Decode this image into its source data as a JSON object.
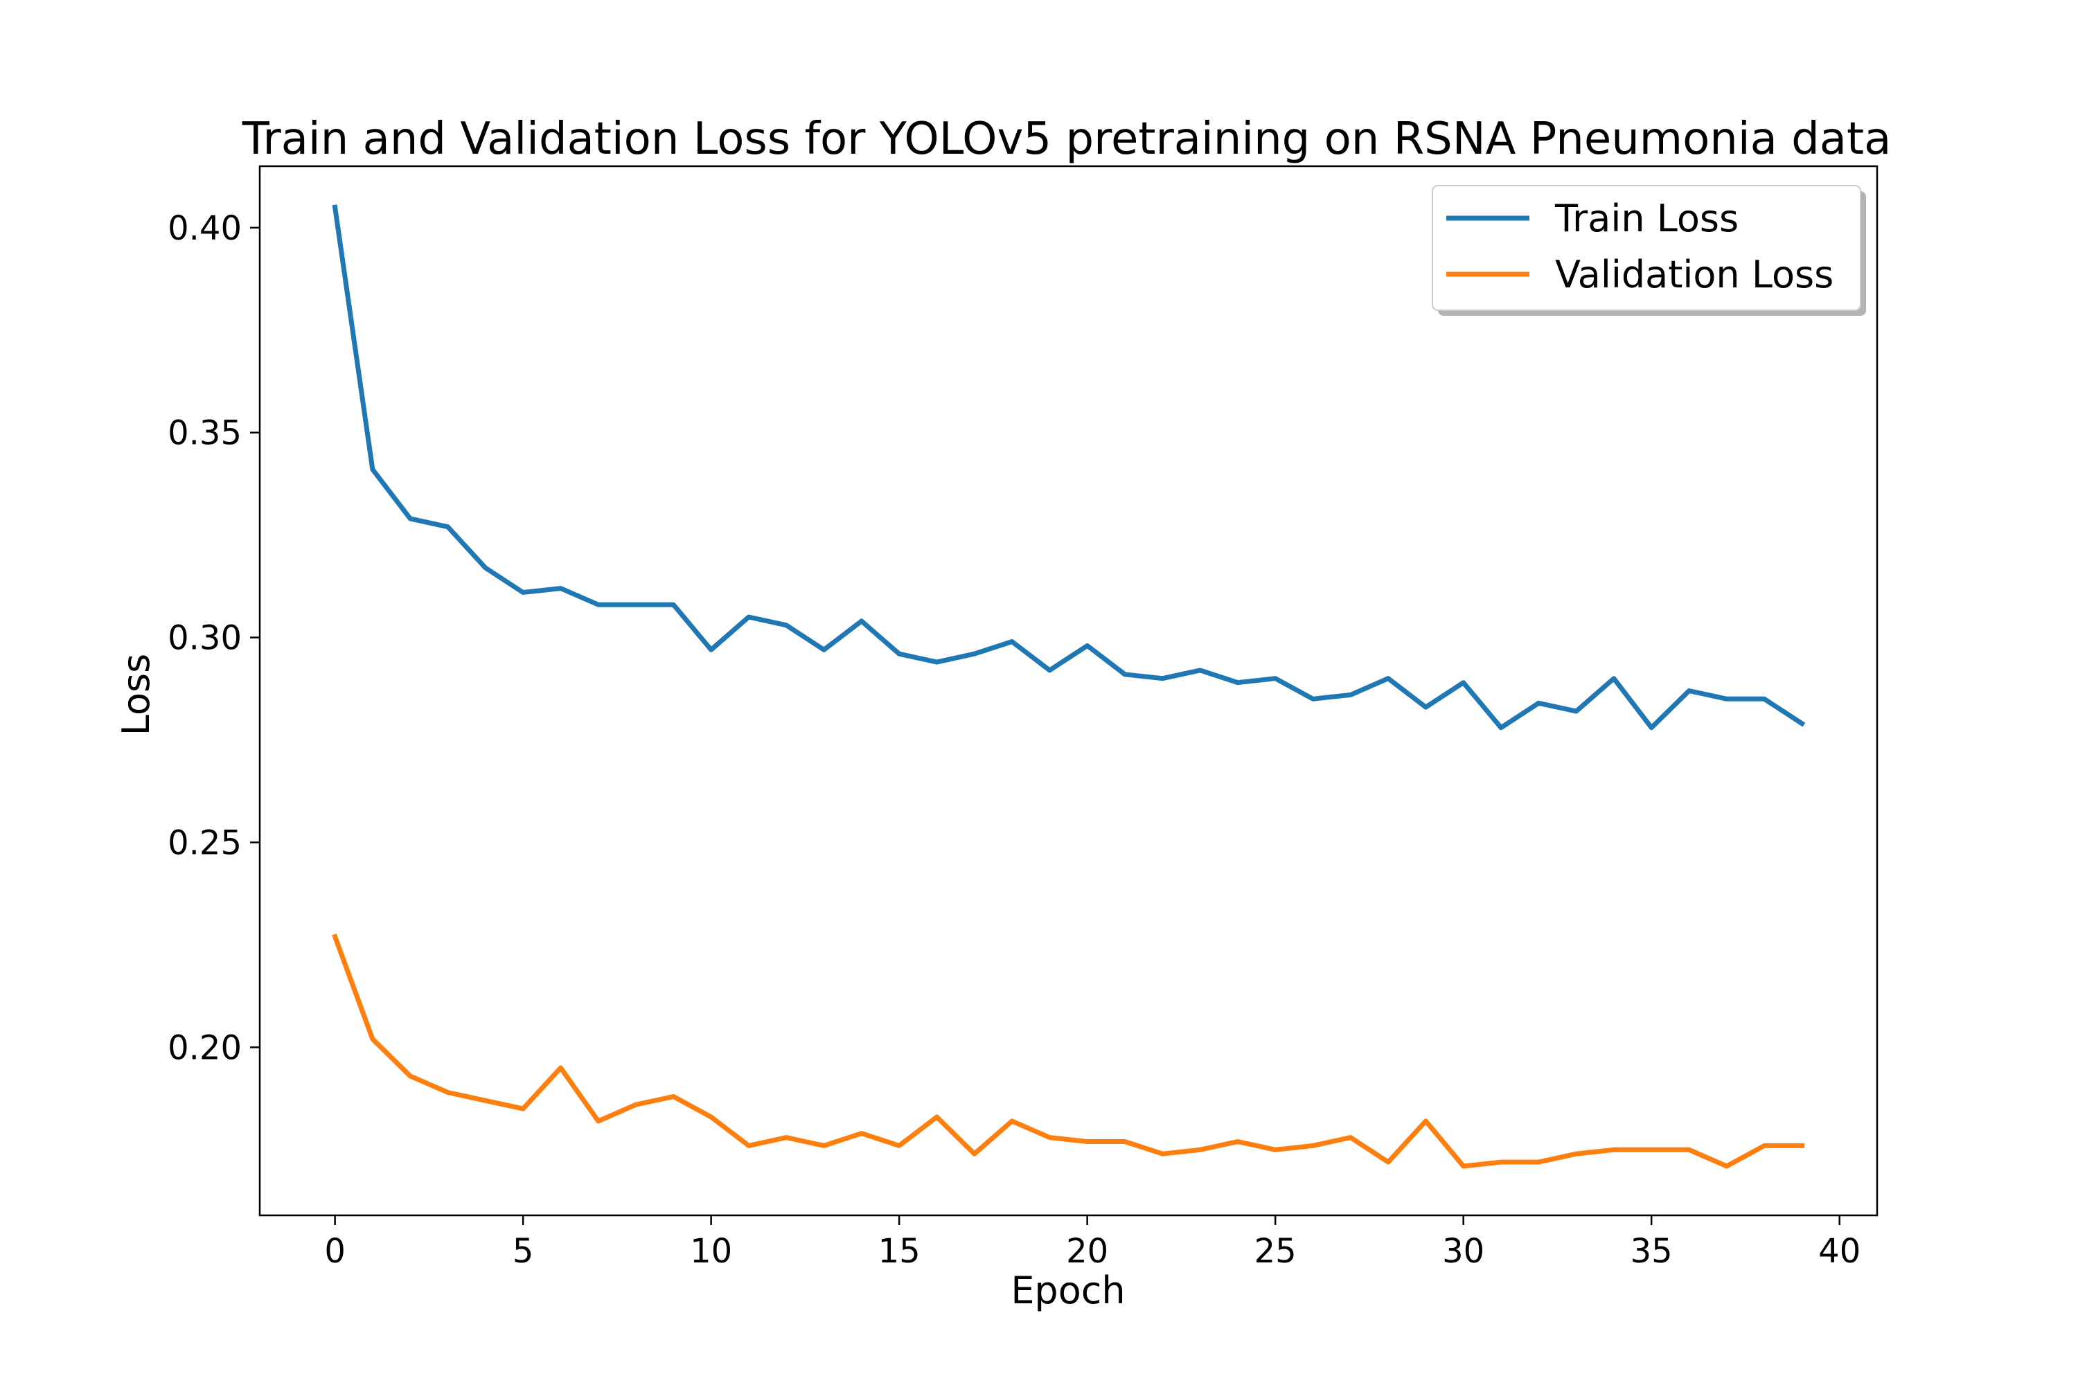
{
  "chart_data": {
    "type": "line",
    "title": "Train and Validation Loss for YOLOv5 pretraining on RSNA Pneumonia data",
    "xlabel": "Epoch",
    "ylabel": "Loss",
    "xlim": [
      -2,
      41
    ],
    "ylim": [
      0.159,
      0.415
    ],
    "xticks": [
      0,
      5,
      10,
      15,
      20,
      25,
      30,
      35,
      40
    ],
    "yticks": [
      0.2,
      0.25,
      0.3,
      0.35,
      0.4
    ],
    "xtick_labels": [
      "0",
      "5",
      "10",
      "15",
      "20",
      "25",
      "30",
      "35",
      "40"
    ],
    "ytick_labels": [
      "0.20",
      "0.25",
      "0.30",
      "0.35",
      "0.40"
    ],
    "grid": false,
    "legend": {
      "position": "top-right"
    },
    "x": [
      0,
      1,
      2,
      3,
      4,
      5,
      6,
      7,
      8,
      9,
      10,
      11,
      12,
      13,
      14,
      15,
      16,
      17,
      18,
      19,
      20,
      21,
      22,
      23,
      24,
      25,
      26,
      27,
      28,
      29,
      30,
      31,
      32,
      33,
      34,
      35,
      36,
      37,
      38,
      39
    ],
    "series": [
      {
        "name": "Train Loss",
        "color": "#1f77b4",
        "values": [
          0.405,
          0.341,
          0.329,
          0.327,
          0.317,
          0.311,
          0.312,
          0.308,
          0.308,
          0.308,
          0.297,
          0.305,
          0.303,
          0.297,
          0.304,
          0.296,
          0.294,
          0.296,
          0.299,
          0.292,
          0.298,
          0.291,
          0.29,
          0.292,
          0.289,
          0.29,
          0.285,
          0.286,
          0.29,
          0.283,
          0.289,
          0.278,
          0.284,
          0.282,
          0.29,
          0.278,
          0.287,
          0.285,
          0.285,
          0.279
        ]
      },
      {
        "name": "Validation Loss",
        "color": "#ff7f0e",
        "values": [
          0.227,
          0.202,
          0.193,
          0.189,
          0.187,
          0.185,
          0.195,
          0.182,
          0.186,
          0.188,
          0.183,
          0.176,
          0.178,
          0.176,
          0.179,
          0.176,
          0.183,
          0.174,
          0.182,
          0.178,
          0.177,
          0.177,
          0.174,
          0.175,
          0.177,
          0.175,
          0.176,
          0.178,
          0.172,
          0.182,
          0.171,
          0.172,
          0.172,
          0.174,
          0.175,
          0.175,
          0.175,
          0.171,
          0.176,
          0.176
        ]
      }
    ]
  }
}
